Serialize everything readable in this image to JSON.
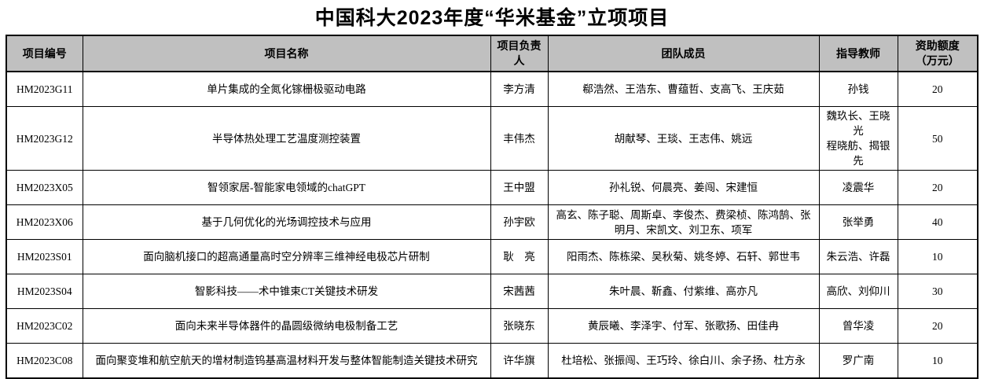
{
  "title": "中国科大2023年度“华米基金”立项项目",
  "colors": {
    "header_bg": "#c0c0c0",
    "border": "#000000",
    "text": "#000000",
    "background": "#ffffff"
  },
  "table": {
    "headers": [
      "项目编号",
      "项目名称",
      "项目负责人",
      "团队成员",
      "指导教师",
      "资助额度\n（万元）"
    ],
    "rows": [
      {
        "id": "HM2023G11",
        "name": "单片集成的全氮化镓栅极驱动电路",
        "leader": "李方清",
        "team": "郗浩然、王浩东、曹蕴哲、支高飞、王庆茹",
        "advisor": "孙钱",
        "amount": "20"
      },
      {
        "id": "HM2023G12",
        "name": "半导体热处理工艺温度测控装置",
        "leader": "丰伟杰",
        "team": "胡献琴、王琰、王志伟、姚远",
        "advisor": "魏玖长、王晓光\n程晓舫、揭银先",
        "amount": "50"
      },
      {
        "id": "HM2023X05",
        "name": "智领家居-智能家电领域的chatGPT",
        "leader": "王中盟",
        "team": "孙礼锐、何晨亮、姜闯、宋建恒",
        "advisor": "凌震华",
        "amount": "20"
      },
      {
        "id": "HM2023X06",
        "name": "基于几何优化的光场调控技术与应用",
        "leader": "孙宇欧",
        "team": "高玄、陈子聪、周斯卓、李俊杰、费梁桢、陈鸿鹄、张明月、宋凯文、刘卫东、项军",
        "advisor": "张举勇",
        "amount": "40"
      },
      {
        "id": "HM2023S01",
        "name": "面向脑机接口的超高通量高时空分辨率三维神经电极芯片研制",
        "leader": "耿　亮",
        "team": "阳雨杰、陈栋梁、吴秋菊、姚冬婷、石轩、郭世韦",
        "advisor": "朱云浩、许磊",
        "amount": "10"
      },
      {
        "id": "HM2023S04",
        "name": "智影科技——术中锥束CT关键技术研发",
        "leader": "宋茜茜",
        "team": "朱叶晨、靳鑫、付紫维、高亦凡",
        "advisor": "高欣、刘仰川",
        "amount": "30"
      },
      {
        "id": "HM2023C02",
        "name": "面向未来半导体器件的晶圆级微纳电极制备工艺",
        "leader": "张晓东",
        "team": "黄辰曦、李泽宇、付军、张歌扬、田佳冉",
        "advisor": "曾华凌",
        "amount": "20"
      },
      {
        "id": "HM2023C08",
        "name": "面向聚变堆和航空航天的增材制造钨基高温材料开发与整体智能制造关键技术研究",
        "leader": "许华旗",
        "team": "杜培松、张振闯、王巧玲、徐白川、余子扬、杜方永",
        "advisor": "罗广南",
        "amount": "10"
      }
    ]
  }
}
